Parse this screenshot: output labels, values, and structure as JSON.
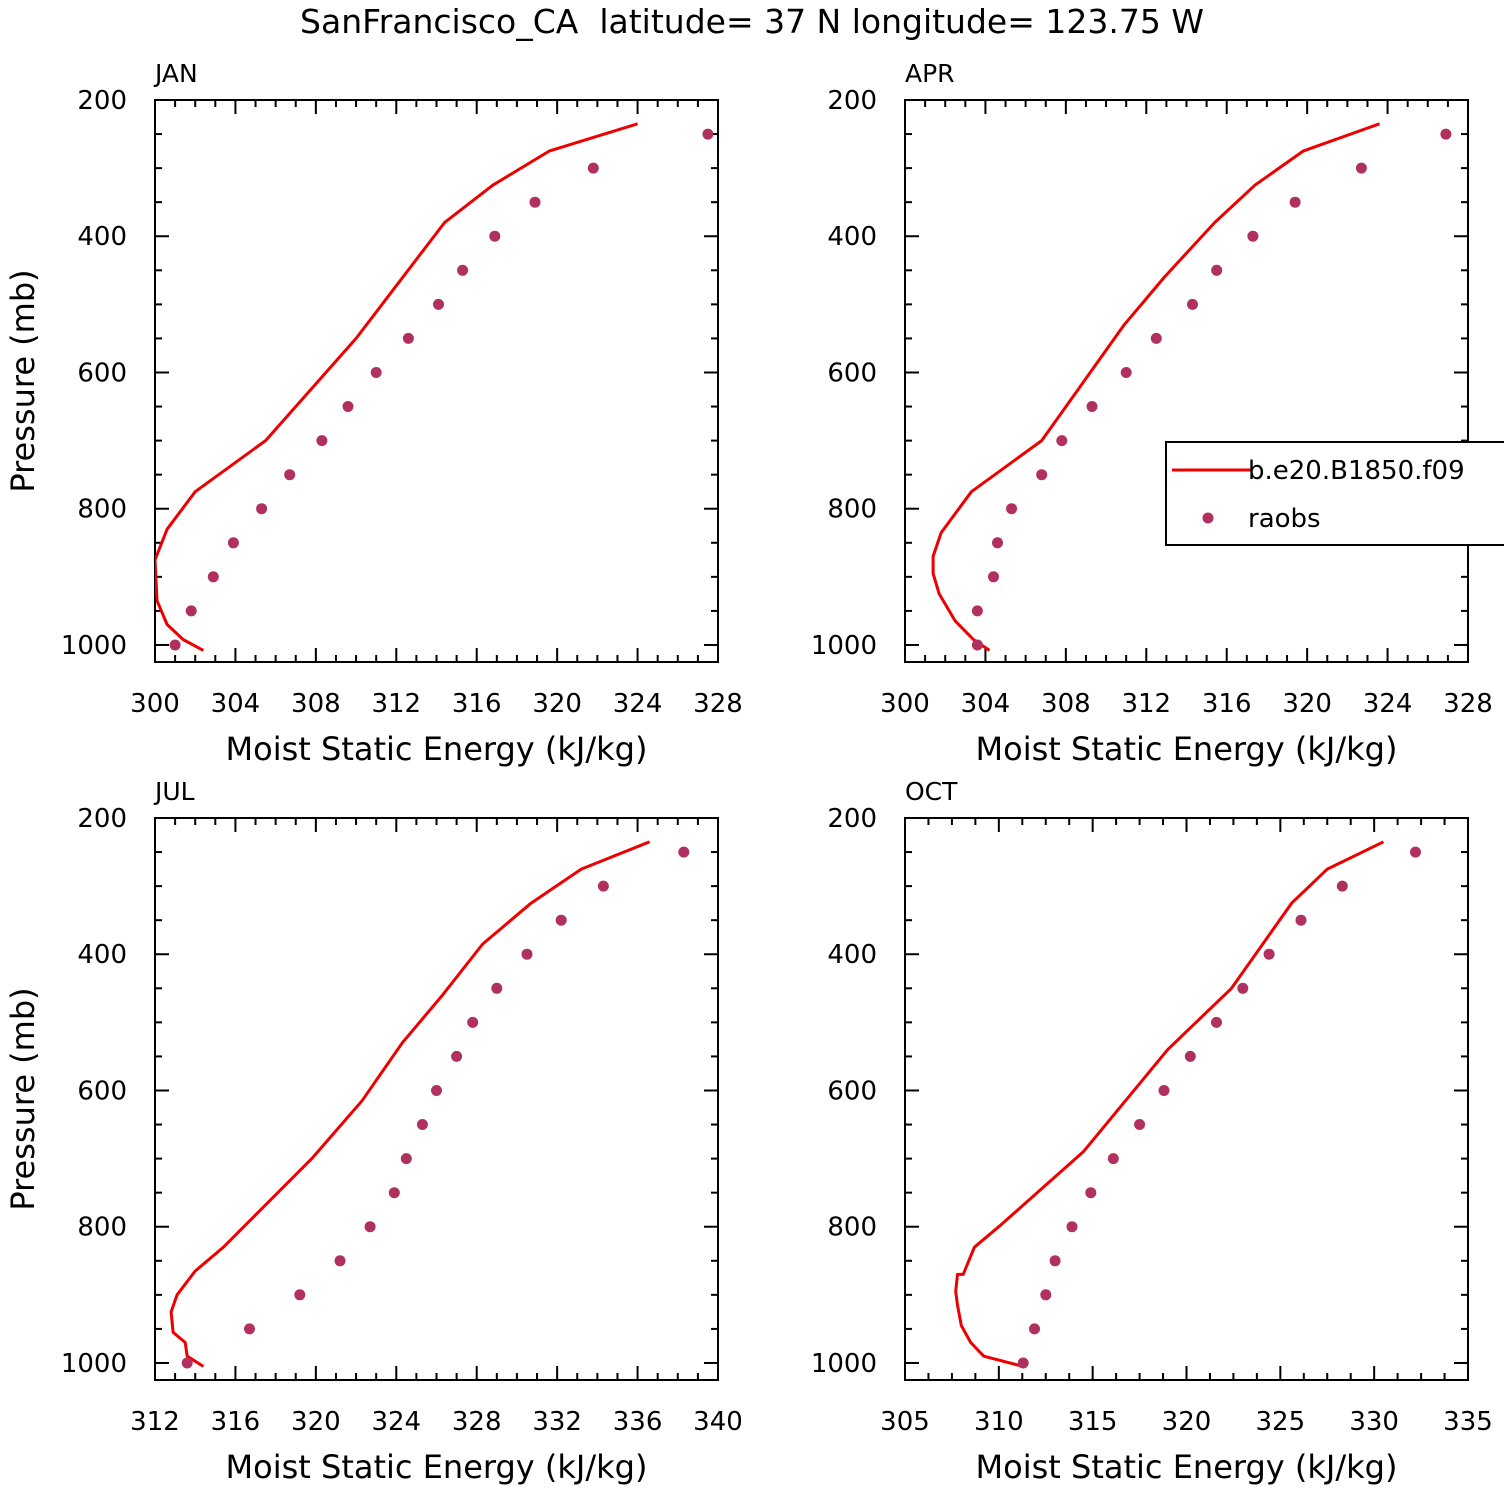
{
  "figure": {
    "title": "SanFrancisco_CA  latitude= 37 N longitude= 123.75 W",
    "legend": {
      "entries": [
        {
          "label": "b.e20.B1850.f09",
          "kind": "line"
        },
        {
          "label": "raobs",
          "kind": "marker"
        }
      ],
      "placement": "inside APR panel, right side (clipped)"
    }
  },
  "colors": {
    "model_line": "#ee0000",
    "raobs_marker": "#b0305f",
    "frame": "#000000"
  },
  "chart_data": [
    {
      "type": "line",
      "title": "JAN",
      "xlabel": "Moist Static Energy (kJ/kg)",
      "ylabel": "Pressure (mb)",
      "xlim": [
        300,
        328
      ],
      "xticks": [
        300,
        304,
        308,
        312,
        316,
        320,
        324,
        328
      ],
      "ylim": [
        1025,
        200
      ],
      "yticks": [
        200,
        400,
        600,
        800,
        1000
      ],
      "y_inverted": true,
      "series": [
        {
          "name": "b.e20.B1850.f09",
          "type": "line",
          "x": [
            302.4,
            301.4,
            300.6,
            300.1,
            300.0,
            300.6,
            302.0,
            305.5,
            310.0,
            314.4,
            316.8,
            319.6,
            324.0
          ],
          "y": [
            1008,
            992,
            970,
            935,
            875,
            830,
            775,
            700,
            550,
            380,
            325,
            275,
            235
          ]
        },
        {
          "name": "raobs",
          "type": "scatter",
          "x": [
            301.0,
            301.8,
            302.9,
            303.9,
            305.3,
            306.7,
            308.3,
            309.6,
            311.0,
            312.6,
            314.1,
            315.3,
            316.9,
            318.9,
            321.8,
            327.5
          ],
          "y": [
            1000,
            950,
            900,
            850,
            800,
            750,
            700,
            650,
            600,
            550,
            500,
            450,
            400,
            350,
            300,
            250
          ]
        }
      ]
    },
    {
      "type": "line",
      "title": "APR",
      "xlabel": "Moist Static Energy (kJ/kg)",
      "ylabel": "",
      "xlim": [
        300,
        328
      ],
      "xticks": [
        300,
        304,
        308,
        312,
        316,
        320,
        324,
        328
      ],
      "ylim": [
        1025,
        200
      ],
      "yticks": [
        200,
        400,
        600,
        800,
        1000
      ],
      "y_inverted": true,
      "series": [
        {
          "name": "b.e20.B1850.f09",
          "type": "line",
          "x": [
            304.2,
            303.4,
            302.5,
            301.7,
            301.4,
            301.4,
            301.8,
            303.3,
            306.8,
            310.9,
            312.9,
            315.4,
            317.4,
            319.8,
            323.6
          ],
          "y": [
            1008,
            992,
            965,
            925,
            895,
            870,
            835,
            775,
            700,
            530,
            460,
            380,
            325,
            275,
            235
          ]
        },
        {
          "name": "raobs",
          "type": "scatter",
          "x": [
            303.6,
            303.6,
            304.4,
            304.6,
            305.3,
            306.8,
            307.8,
            309.3,
            311.0,
            312.5,
            314.3,
            315.5,
            317.3,
            319.4,
            322.7,
            326.9
          ],
          "y": [
            1000,
            950,
            900,
            850,
            800,
            750,
            700,
            650,
            600,
            550,
            500,
            450,
            400,
            350,
            300,
            250
          ]
        }
      ]
    },
    {
      "type": "line",
      "title": "JUL",
      "xlabel": "Moist Static Energy (kJ/kg)",
      "ylabel": "Pressure (mb)",
      "xlim": [
        312,
        340
      ],
      "xticks": [
        312,
        316,
        320,
        324,
        328,
        332,
        336,
        340
      ],
      "ylim": [
        1025,
        200
      ],
      "yticks": [
        200,
        400,
        600,
        800,
        1000
      ],
      "y_inverted": true,
      "series": [
        {
          "name": "b.e20.B1850.f09",
          "type": "line",
          "x": [
            314.4,
            313.6,
            313.5,
            312.9,
            312.8,
            313.1,
            314.0,
            315.4,
            319.8,
            322.3,
            324.3,
            326.3,
            328.3,
            330.7,
            333.2,
            336.6
          ],
          "y": [
            1005,
            990,
            970,
            955,
            925,
            900,
            865,
            830,
            700,
            615,
            530,
            460,
            385,
            325,
            275,
            235
          ]
        },
        {
          "name": "raobs",
          "type": "scatter",
          "x": [
            313.6,
            316.7,
            319.2,
            321.2,
            322.7,
            323.9,
            324.5,
            325.3,
            326.0,
            327.0,
            327.8,
            329.0,
            330.5,
            332.2,
            334.3,
            338.3
          ],
          "y": [
            1000,
            950,
            900,
            850,
            800,
            750,
            700,
            650,
            600,
            550,
            500,
            450,
            400,
            350,
            300,
            250
          ]
        }
      ]
    },
    {
      "type": "line",
      "title": "OCT",
      "xlabel": "Moist Static Energy (kJ/kg)",
      "ylabel": "",
      "xlim": [
        305,
        335
      ],
      "xticks": [
        305,
        310,
        315,
        320,
        325,
        330,
        335
      ],
      "ylim": [
        1025,
        200
      ],
      "yticks": [
        200,
        400,
        600,
        800,
        1000
      ],
      "y_inverted": true,
      "series": [
        {
          "name": "b.e20.B1850.f09",
          "type": "line",
          "x": [
            311.3,
            309.2,
            308.5,
            308.0,
            307.8,
            307.7,
            307.8,
            308.1,
            308.7,
            310.0,
            314.5,
            319.0,
            322.4,
            325.6,
            327.5,
            330.5
          ],
          "y": [
            1005,
            990,
            970,
            945,
            915,
            895,
            870,
            870,
            830,
            800,
            690,
            540,
            450,
            325,
            275,
            235
          ]
        },
        {
          "name": "raobs",
          "type": "scatter",
          "x": [
            311.3,
            311.9,
            312.5,
            313.0,
            313.9,
            314.9,
            316.1,
            317.5,
            318.8,
            320.2,
            321.6,
            323.0,
            324.4,
            326.1,
            328.3,
            332.2
          ],
          "y": [
            1000,
            950,
            900,
            850,
            800,
            750,
            700,
            650,
            600,
            550,
            500,
            450,
            400,
            350,
            300,
            250
          ]
        }
      ]
    }
  ]
}
